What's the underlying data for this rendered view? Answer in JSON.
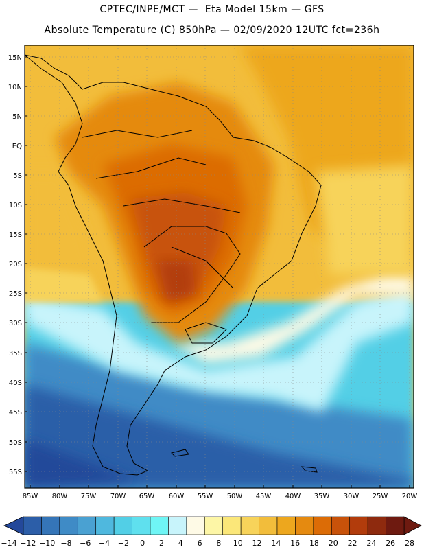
{
  "title": {
    "line1": "CPTEC/INPE/MCT —  Eta Model 15km — GFS",
    "line2": "Absolute Temperature (C) 850hPa — 02/09/2020 12UTC fct=236h"
  },
  "axes": {
    "lat_labels": [
      "15N",
      "10N",
      "5N",
      "EQ",
      "5S",
      "10S",
      "15S",
      "20S",
      "25S",
      "30S",
      "35S",
      "40S",
      "45S",
      "50S",
      "55S"
    ],
    "lon_labels": [
      "85W",
      "80W",
      "75W",
      "70W",
      "65W",
      "60W",
      "55W",
      "50W",
      "45W",
      "40W",
      "35W",
      "30W",
      "25W",
      "20W"
    ]
  },
  "colorbar": {
    "labels": [
      "-14",
      "-12",
      "-10",
      "-8",
      "-6",
      "-4",
      "-2",
      "0",
      "2",
      "4",
      "6",
      "8",
      "10",
      "12",
      "14",
      "16",
      "18",
      "20",
      "22",
      "24",
      "26",
      "28"
    ],
    "colors": [
      "#24489a",
      "#2c5ea8",
      "#3575b8",
      "#3f8bc6",
      "#4aa1d2",
      "#4fb8de",
      "#52cfe6",
      "#5fe0ee",
      "#6ff5f5",
      "#c8f4fb",
      "#fefae6",
      "#fdf6a6",
      "#fbe779",
      "#f7d35a",
      "#f2bd3b",
      "#eda71e",
      "#e58a10",
      "#dc6c06",
      "#c8520a",
      "#b23c0c",
      "#8e2a0e",
      "#6e1a10"
    ],
    "under_color": "#24489a",
    "over_color": "#6e1a10"
  },
  "field_colors": {
    "cold_deep": "#24489a",
    "cold": "#3f8bc6",
    "cool": "#52cfe6",
    "mild": "#c8f4fb",
    "warm_light": "#fdf6a6",
    "warm": "#f7d35a",
    "hot": "#eda71e",
    "hotter": "#e58a10",
    "very_hot": "#dc6c06",
    "extreme": "#b23c0c",
    "land_line": "#000000"
  }
}
